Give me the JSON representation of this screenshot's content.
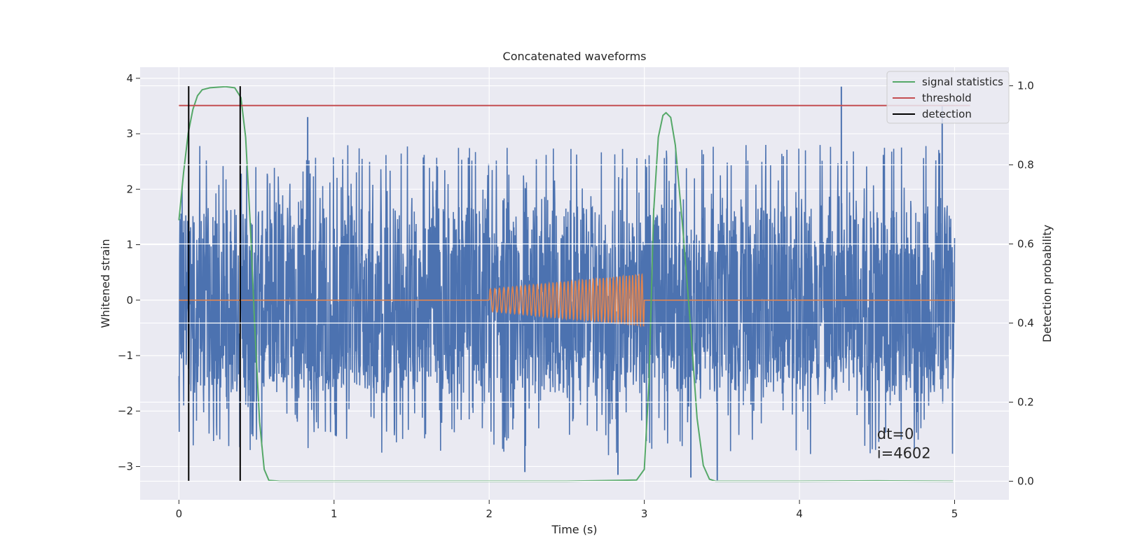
{
  "chart_data": {
    "type": "line",
    "title": "Concatenated waveforms",
    "xlabel": "Time (s)",
    "ylabel": "Whitened strain",
    "ylabel_right": "Detection probability",
    "xlim": [
      -0.25,
      5.35
    ],
    "ylim": [
      -3.6,
      4.2
    ],
    "ylim_right": [
      -0.047,
      1.047
    ],
    "x_ticks": [
      0,
      1,
      2,
      3,
      4,
      5
    ],
    "x_tick_labels": [
      "0",
      "1",
      "2",
      "3",
      "4",
      "5"
    ],
    "y_ticks": [
      -3,
      -2,
      -1,
      0,
      1,
      2,
      3,
      4
    ],
    "y_tick_labels": [
      "−3",
      "−2",
      "−1",
      "0",
      "1",
      "2",
      "3",
      "4"
    ],
    "y2_ticks": [
      0.0,
      0.2,
      0.4,
      0.6,
      0.8,
      1.0
    ],
    "y2_tick_labels": [
      "0.0",
      "0.2",
      "0.4",
      "0.6",
      "0.8",
      "1.0"
    ],
    "grid": true,
    "legend_position": "top-right",
    "legend": [
      {
        "label": "signal statistics",
        "color": "#55a868"
      },
      {
        "label": "threshold",
        "color": "#c44e52"
      },
      {
        "label": "detection",
        "color": "#000000"
      }
    ],
    "colors": {
      "strain": "#4c72b0",
      "injection": "#dd8452",
      "signal_statistics": "#55a868",
      "threshold": "#c44e52",
      "detection": "#000000",
      "background": "#eaeaf2",
      "grid": "#ffffff"
    },
    "strain": {
      "x_range": [
        0,
        5
      ],
      "typical_range": [
        -1.5,
        1.0
      ],
      "peak_range": [
        -3.3,
        3.9
      ],
      "notable_peaks": [
        {
          "x": 0.83,
          "y": 3.3
        },
        {
          "x": 2.23,
          "y": -3.1
        },
        {
          "x": 2.83,
          "y": -3.15
        },
        {
          "x": 3.3,
          "y": -3.2
        },
        {
          "x": 3.47,
          "y": -3.25
        },
        {
          "x": 4.27,
          "y": 3.85
        },
        {
          "x": 4.92,
          "y": 3.5
        }
      ]
    },
    "injection": {
      "x": [
        0,
        2,
        3,
        5
      ],
      "segment_start": 2.0,
      "segment_end": 3.0,
      "amplitude_start": 0.2,
      "amplitude_end": 0.47,
      "cycles": 42
    },
    "series": [
      {
        "name": "signal statistics",
        "axis": "right",
        "x": [
          0,
          0.03,
          0.06,
          0.09,
          0.12,
          0.15,
          0.2,
          0.3,
          0.36,
          0.4,
          0.43,
          0.46,
          0.49,
          0.52,
          0.55,
          0.58,
          0.65,
          1.5,
          2.5,
          2.95,
          3.0,
          3.03,
          3.06,
          3.09,
          3.12,
          3.14,
          3.17,
          3.2,
          3.25,
          3.3,
          3.34,
          3.38,
          3.42,
          3.46,
          4.0,
          4.5,
          4.99
        ],
        "y": [
          0.66,
          0.78,
          0.88,
          0.94,
          0.975,
          0.99,
          0.995,
          0.998,
          0.995,
          0.97,
          0.87,
          0.65,
          0.38,
          0.15,
          0.03,
          0.002,
          0.0,
          0.0,
          0.0,
          0.003,
          0.03,
          0.25,
          0.68,
          0.87,
          0.925,
          0.932,
          0.92,
          0.85,
          0.63,
          0.38,
          0.16,
          0.04,
          0.005,
          0.0,
          0.0,
          0.001,
          0.0
        ]
      },
      {
        "name": "threshold",
        "axis": "right",
        "x": [
          0,
          5.1
        ],
        "y": [
          0.95,
          0.95
        ]
      }
    ],
    "detections": [
      0.063,
      0.395
    ],
    "annotation_dt": "dt=0",
    "annotation_i": "i=4602"
  }
}
